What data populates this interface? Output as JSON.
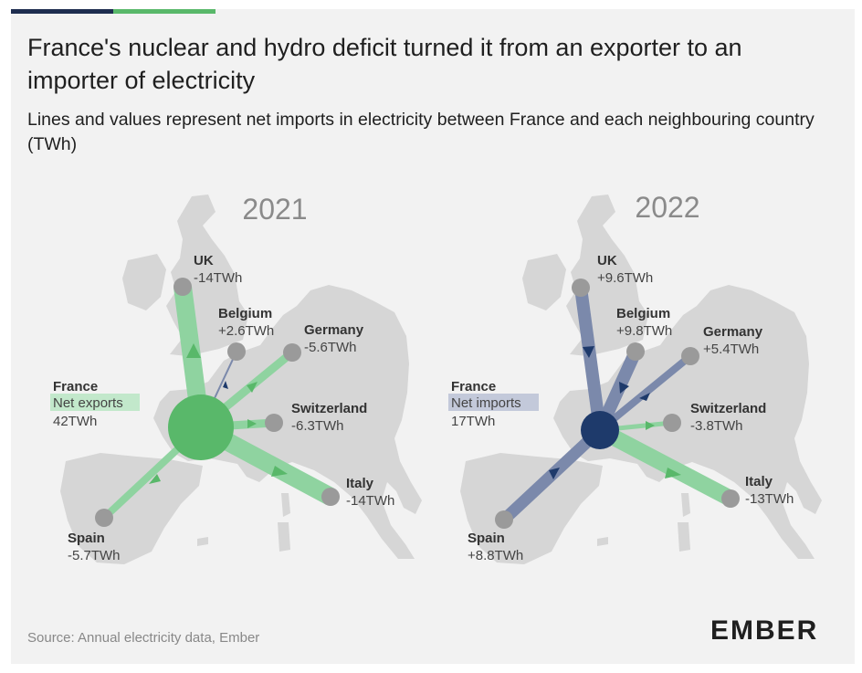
{
  "header": {
    "title": "France's nuclear and hydro deficit turned it from an exporter to an importer of electricity",
    "subtitle": "Lines and values represent net imports in electricity between France and each neighbouring country (TWh)"
  },
  "footer": {
    "source": "Source: Annual electricity data, Ember",
    "logo": "EMBER"
  },
  "colors": {
    "export_green": "#59b86a",
    "export_green_light": "#8fd3a0",
    "import_navy": "#1e3a6b",
    "import_blue_light": "#7b89ab",
    "node_gray": "#9a9a9a",
    "land": "#d6d6d6"
  },
  "maps": [
    {
      "year": "2021",
      "france": {
        "name": "France",
        "status": "Net exports",
        "value": "42TWh"
      },
      "countries": [
        {
          "name": "UK",
          "value": "-14TWh"
        },
        {
          "name": "Belgium",
          "value": "+2.6TWh"
        },
        {
          "name": "Germany",
          "value": "-5.6TWh"
        },
        {
          "name": "Switzerland",
          "value": "-6.3TWh"
        },
        {
          "name": "Italy",
          "value": "-14TWh"
        },
        {
          "name": "Spain",
          "value": "-5.7TWh"
        }
      ]
    },
    {
      "year": "2022",
      "france": {
        "name": "France",
        "status": "Net imports",
        "value": "17TWh"
      },
      "countries": [
        {
          "name": "UK",
          "value": "+9.6TWh"
        },
        {
          "name": "Belgium",
          "value": "+9.8TWh"
        },
        {
          "name": "Germany",
          "value": "+5.4TWh"
        },
        {
          "name": "Switzerland",
          "value": "-3.8TWh"
        },
        {
          "name": "Italy",
          "value": "-13TWh"
        },
        {
          "name": "Spain",
          "value": "+8.8TWh"
        }
      ]
    }
  ]
}
